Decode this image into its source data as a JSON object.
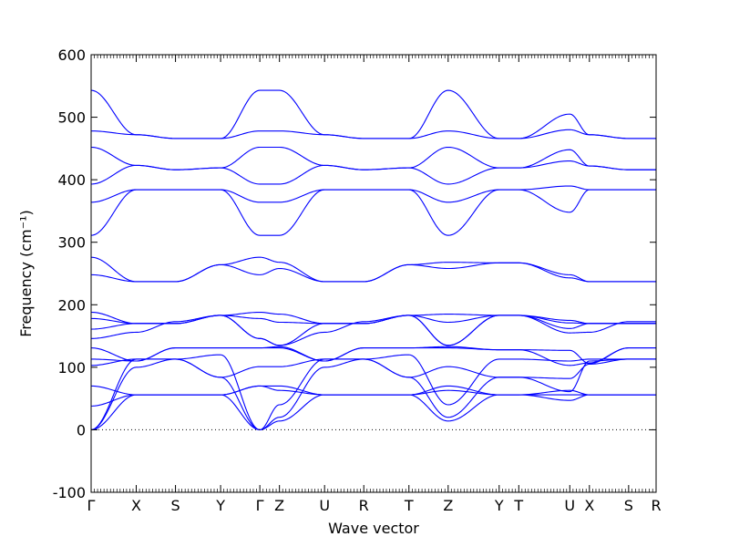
{
  "chart_data": {
    "type": "line",
    "title": "",
    "xlabel": "Wave vector",
    "ylabel": "Frequency (cm⁻¹)",
    "ylim": [
      -100,
      600
    ],
    "yticks": [
      -100,
      0,
      100,
      200,
      300,
      400,
      500,
      600
    ],
    "grid": false,
    "line_color": "#0000ff",
    "zero_line": true,
    "xlim": [
      0,
      14.4
    ],
    "k_points": [
      {
        "label": "Γ",
        "x": 0.0
      },
      {
        "label": "X",
        "x": 1.15
      },
      {
        "label": "S",
        "x": 2.15
      },
      {
        "label": "Y",
        "x": 3.3
      },
      {
        "label": "Γ",
        "x": 4.3
      },
      {
        "label": "Z",
        "x": 4.8
      },
      {
        "label": "U",
        "x": 5.95
      },
      {
        "label": "R",
        "x": 6.95
      },
      {
        "label": "T",
        "x": 8.1
      },
      {
        "label": "Z",
        "x": 9.1
      },
      {
        "label": "Y",
        "x": 10.4
      },
      {
        "label": "T",
        "x": 10.9
      },
      {
        "label": "U",
        "x": 12.2
      },
      {
        "label": "X",
        "x": 12.7
      },
      {
        "label": "S",
        "x": 13.7
      },
      {
        "label": "R",
        "x": 14.4
      }
    ],
    "series": [
      {
        "values": [
          0,
          56,
          56,
          56,
          0,
          14,
          56,
          56,
          56,
          14,
          56,
          56,
          47,
          56,
          56,
          56
        ]
      },
      {
        "values": [
          0,
          100,
          113,
          84,
          0,
          20,
          100,
          113,
          84,
          20,
          84,
          84,
          61,
          110,
          113,
          113
        ]
      },
      {
        "values": [
          0,
          113,
          113,
          120,
          0,
          40,
          113,
          113,
          120,
          40,
          113,
          113,
          110,
          113,
          113,
          113
        ]
      },
      {
        "values": [
          38,
          56,
          56,
          56,
          70,
          70,
          56,
          56,
          56,
          70,
          56,
          56,
          63,
          56,
          56,
          56
        ]
      },
      {
        "values": [
          70,
          56,
          56,
          56,
          70,
          63,
          56,
          56,
          56,
          63,
          56,
          56,
          56,
          56,
          56,
          56
        ]
      },
      {
        "values": [
          103,
          113,
          113,
          84,
          101,
          101,
          113,
          113,
          84,
          101,
          84,
          84,
          82,
          105,
          113,
          113
        ]
      },
      {
        "values": [
          113,
          110,
          131,
          131,
          131,
          131,
          110,
          131,
          131,
          131,
          128,
          128,
          103,
          107,
          131,
          131
        ]
      },
      {
        "values": [
          131,
          110,
          131,
          131,
          131,
          133,
          110,
          131,
          131,
          133,
          128,
          128,
          127,
          106,
          131,
          131
        ]
      },
      {
        "values": [
          146,
          156,
          173,
          183,
          146,
          135,
          156,
          173,
          183,
          135,
          183,
          183,
          155,
          156,
          173,
          173
        ]
      },
      {
        "values": [
          161,
          170,
          170,
          183,
          146,
          135,
          170,
          170,
          183,
          135,
          183,
          183,
          162,
          170,
          170,
          170
        ]
      },
      {
        "values": [
          178,
          170,
          170,
          183,
          178,
          172,
          170,
          170,
          183,
          172,
          183,
          183,
          171,
          170,
          170,
          170
        ]
      },
      {
        "values": [
          188,
          170,
          170,
          183,
          188,
          185,
          170,
          170,
          183,
          185,
          183,
          183,
          175,
          170,
          170,
          170
        ]
      },
      {
        "values": [
          248,
          237,
          237,
          264,
          248,
          258,
          237,
          237,
          264,
          258,
          267,
          267,
          243,
          237,
          237,
          237
        ]
      },
      {
        "values": [
          276,
          237,
          237,
          264,
          276,
          268,
          237,
          237,
          264,
          268,
          267,
          267,
          248,
          237,
          237,
          237
        ]
      },
      {
        "values": [
          311,
          384,
          384,
          384,
          311,
          311,
          384,
          384,
          384,
          311,
          384,
          384,
          348,
          384,
          384,
          384
        ]
      },
      {
        "values": [
          364,
          384,
          384,
          384,
          364,
          364,
          384,
          384,
          384,
          364,
          384,
          384,
          390,
          384,
          384,
          384
        ]
      },
      {
        "values": [
          393,
          423,
          416,
          419,
          393,
          393,
          423,
          416,
          419,
          393,
          419,
          419,
          430,
          422,
          416,
          416
        ]
      },
      {
        "values": [
          452,
          423,
          416,
          419,
          452,
          452,
          423,
          416,
          419,
          452,
          419,
          419,
          448,
          422,
          416,
          416
        ]
      },
      {
        "values": [
          478,
          472,
          466,
          466,
          478,
          478,
          472,
          466,
          466,
          478,
          466,
          466,
          480,
          472,
          466,
          466
        ]
      },
      {
        "values": [
          543,
          472,
          466,
          466,
          543,
          543,
          472,
          466,
          466,
          543,
          466,
          466,
          505,
          472,
          466,
          466
        ]
      }
    ]
  }
}
